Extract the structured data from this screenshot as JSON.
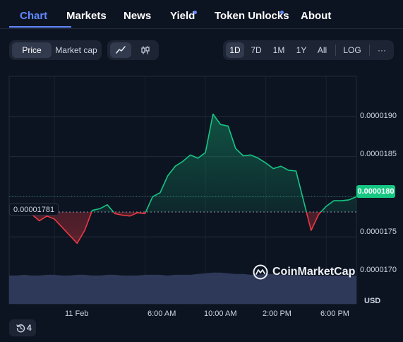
{
  "tabs": [
    {
      "label": "Chart",
      "active": true,
      "dot": false
    },
    {
      "label": "Markets",
      "active": false,
      "dot": false
    },
    {
      "label": "News",
      "active": false,
      "dot": false
    },
    {
      "label": "Yield",
      "active": false,
      "dot": true
    },
    {
      "label": "Token Unlocks",
      "active": false,
      "dot": true
    },
    {
      "label": "About",
      "active": false,
      "dot": false
    }
  ],
  "view_toggle": {
    "price": "Price",
    "market_cap": "Market cap",
    "selected": "Price"
  },
  "chart_type_toggle": {
    "line_icon": "line-chart-icon",
    "candle_icon": "candlestick-icon",
    "selected": "line"
  },
  "ranges": {
    "items": [
      "1D",
      "7D",
      "1M",
      "1Y",
      "All"
    ],
    "selected": "1D",
    "log": "LOG",
    "more": "···"
  },
  "colors": {
    "up": "#16c784",
    "down": "#ea3943",
    "volume": "#323c5e",
    "accent": "#6188ff",
    "background": "#0d1421"
  },
  "open_price_label": "0.00001781",
  "current_price_label": "0.0000180",
  "watermark": "CoinMarketCap",
  "currency": "USD",
  "history": {
    "icon": "history-icon",
    "count": "4"
  },
  "chart_data": {
    "type": "area",
    "ylim": [
      1.7e-05,
      1.95e-05
    ],
    "ytick_labels": [
      "0.0000190",
      "0.0000185",
      "0.0000180",
      "0.0000175",
      "0.0000170"
    ],
    "yticks": [
      1.9e-05,
      1.85e-05,
      1.8e-05,
      1.75e-05,
      1.7e-05
    ],
    "xtick_labels": [
      "11 Feb",
      "6:00 AM",
      "10:00 AM",
      "2:00 PM",
      "6:00 PM"
    ],
    "xtick_positions": [
      3,
      9,
      13,
      17,
      21
    ],
    "baseline": 1.781e-05,
    "x": [
      0,
      0.5,
      1,
      1.5,
      2,
      2.5,
      3,
      3.5,
      4,
      4.5,
      5,
      5.5,
      6,
      6.5,
      7,
      7.5,
      8,
      8.5,
      9,
      9.5,
      10,
      10.5,
      11,
      11.5,
      12,
      12.5,
      13,
      13.5,
      14,
      14.5,
      15,
      15.5,
      16,
      16.5,
      17,
      17.5,
      18,
      18.5,
      19,
      19.5,
      20,
      20.5,
      21,
      21.5,
      22,
      22.5,
      23
    ],
    "values": [
      1.782e-05,
      1.788e-05,
      1.784e-05,
      1.778e-05,
      1.77e-05,
      1.776e-05,
      1.772e-05,
      1.762e-05,
      1.752e-05,
      1.742e-05,
      1.758e-05,
      1.783e-05,
      1.785e-05,
      1.79e-05,
      1.779e-05,
      1.777e-05,
      1.776e-05,
      1.78e-05,
      1.779e-05,
      1.8e-05,
      1.805e-05,
      1.826e-05,
      1.838e-05,
      1.844e-05,
      1.852e-05,
      1.848e-05,
      1.855e-05,
      1.903e-05,
      1.89e-05,
      1.888e-05,
      1.86e-05,
      1.851e-05,
      1.852e-05,
      1.848e-05,
      1.842e-05,
      1.835e-05,
      1.838e-05,
      1.833e-05,
      1.832e-05,
      1.795e-05,
      1.758e-05,
      1.778e-05,
      1.788e-05,
      1.795e-05,
      1.795e-05,
      1.796e-05,
      1.8e-05
    ],
    "volume": [
      0.4,
      0.4,
      0.41,
      0.4,
      0.4,
      0.41,
      0.41,
      0.4,
      0.4,
      0.41,
      0.41,
      0.4,
      0.4,
      0.41,
      0.41,
      0.4,
      0.4,
      0.4,
      0.41,
      0.41,
      0.41,
      0.4,
      0.41,
      0.41,
      0.41,
      0.42,
      0.43,
      0.44,
      0.44,
      0.43,
      0.42,
      0.42,
      0.41,
      0.41,
      0.42,
      0.42,
      0.41,
      0.41,
      0.41,
      0.4,
      0.4,
      0.4,
      0.4,
      0.4,
      0.4,
      0.4,
      0.4
    ],
    "grid": true,
    "legend": "none"
  }
}
